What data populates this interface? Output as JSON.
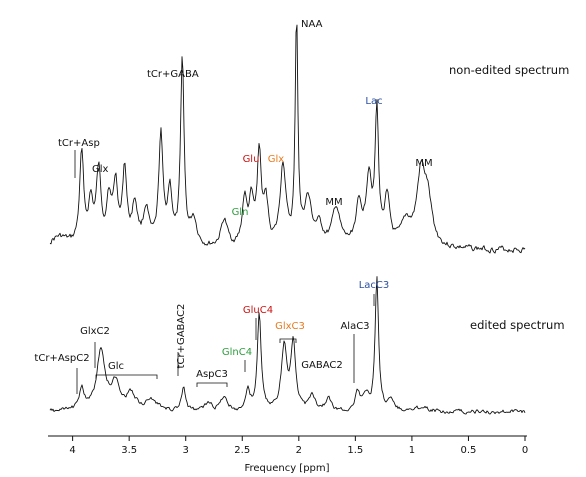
{
  "chart_data": {
    "type": "line",
    "xlabel": "Frequency [ppm]",
    "xlim": [
      4.2,
      0.0
    ],
    "x_reversed": true,
    "xticks": [
      "4",
      "3.5",
      "3",
      "2.5",
      "2",
      "1.5",
      "1",
      "0.5",
      "0"
    ],
    "xtick_values": [
      4,
      3.5,
      3,
      2.5,
      2,
      1.5,
      1,
      0.5,
      0
    ],
    "colors": {
      "black": "#111111",
      "red": "#cc1111",
      "orange": "#e87a1e",
      "green": "#2e9e3e",
      "blue": "#2a4fa0"
    },
    "series": [
      {
        "name": "non-edited spectrum",
        "peaks": [
          {
            "ppm": 4.12,
            "amp": 0.05,
            "w": 0.1
          },
          {
            "ppm": 3.92,
            "amp": 0.4,
            "w": 0.022
          },
          {
            "ppm": 3.84,
            "amp": 0.18,
            "w": 0.025
          },
          {
            "ppm": 3.77,
            "amp": 0.32,
            "w": 0.025
          },
          {
            "ppm": 3.68,
            "amp": 0.2,
            "w": 0.025
          },
          {
            "ppm": 3.62,
            "amp": 0.26,
            "w": 0.025
          },
          {
            "ppm": 3.54,
            "amp": 0.33,
            "w": 0.022
          },
          {
            "ppm": 3.45,
            "amp": 0.18,
            "w": 0.03
          },
          {
            "ppm": 3.35,
            "amp": 0.16,
            "w": 0.03
          },
          {
            "ppm": 3.22,
            "amp": 0.48,
            "w": 0.022
          },
          {
            "ppm": 3.14,
            "amp": 0.24,
            "w": 0.025
          },
          {
            "ppm": 3.03,
            "amp": 0.83,
            "w": 0.018
          },
          {
            "ppm": 2.93,
            "amp": 0.12,
            "w": 0.035
          },
          {
            "ppm": 2.66,
            "amp": 0.12,
            "w": 0.035
          },
          {
            "ppm": 2.48,
            "amp": 0.2,
            "w": 0.025
          },
          {
            "ppm": 2.42,
            "amp": 0.18,
            "w": 0.025
          },
          {
            "ppm": 2.35,
            "amp": 0.4,
            "w": 0.022
          },
          {
            "ppm": 2.29,
            "amp": 0.18,
            "w": 0.025
          },
          {
            "ppm": 2.14,
            "amp": 0.36,
            "w": 0.03
          },
          {
            "ppm": 2.02,
            "amp": 1.0,
            "w": 0.014
          },
          {
            "ppm": 1.92,
            "amp": 0.2,
            "w": 0.04
          },
          {
            "ppm": 1.82,
            "amp": 0.08,
            "w": 0.04
          },
          {
            "ppm": 1.67,
            "amp": 0.17,
            "w": 0.04
          },
          {
            "ppm": 1.47,
            "amp": 0.17,
            "w": 0.035
          },
          {
            "ppm": 1.38,
            "amp": 0.3,
            "w": 0.03
          },
          {
            "ppm": 1.31,
            "amp": 0.57,
            "w": 0.018
          },
          {
            "ppm": 1.22,
            "amp": 0.2,
            "w": 0.03
          },
          {
            "ppm": 1.05,
            "amp": 0.1,
            "w": 0.05
          },
          {
            "ppm": 0.92,
            "amp": 0.3,
            "w": 0.045
          },
          {
            "ppm": 0.86,
            "amp": 0.18,
            "w": 0.045
          }
        ]
      },
      {
        "name": "edited spectrum",
        "peaks": [
          {
            "ppm": 3.92,
            "amp": 0.18,
            "w": 0.025
          },
          {
            "ppm": 3.75,
            "amp": 0.45,
            "w": 0.045
          },
          {
            "ppm": 3.62,
            "amp": 0.2,
            "w": 0.05
          },
          {
            "ppm": 3.48,
            "amp": 0.12,
            "w": 0.05
          },
          {
            "ppm": 3.3,
            "amp": 0.08,
            "w": 0.06
          },
          {
            "ppm": 3.02,
            "amp": 0.18,
            "w": 0.02
          },
          {
            "ppm": 2.8,
            "amp": 0.06,
            "w": 0.04
          },
          {
            "ppm": 2.66,
            "amp": 0.12,
            "w": 0.03
          },
          {
            "ppm": 2.45,
            "amp": 0.16,
            "w": 0.022
          },
          {
            "ppm": 2.35,
            "amp": 0.74,
            "w": 0.02
          },
          {
            "ppm": 2.13,
            "amp": 0.48,
            "w": 0.03
          },
          {
            "ppm": 2.05,
            "amp": 0.52,
            "w": 0.025
          },
          {
            "ppm": 1.88,
            "amp": 0.12,
            "w": 0.03
          },
          {
            "ppm": 1.74,
            "amp": 0.1,
            "w": 0.03
          },
          {
            "ppm": 1.48,
            "amp": 0.14,
            "w": 0.025
          },
          {
            "ppm": 1.4,
            "amp": 0.12,
            "w": 0.03
          },
          {
            "ppm": 1.31,
            "amp": 1.0,
            "w": 0.018
          },
          {
            "ppm": 1.18,
            "amp": 0.08,
            "w": 0.04
          },
          {
            "ppm": 0.9,
            "amp": 0.04,
            "w": 0.06
          }
        ]
      }
    ],
    "annotations_nonedited": [
      {
        "text": "NAA",
        "color": "#111111"
      },
      {
        "text": "tCr+GABA",
        "color": "#111111"
      },
      {
        "text": "non-edited spectrum",
        "color": "#111111"
      },
      {
        "text": "tCr+Asp",
        "color": "#111111"
      },
      {
        "text": "Glx",
        "color": "#111111"
      },
      {
        "text": "Lac",
        "color": "#2a4fa0"
      },
      {
        "text": "Glu",
        "color": "#cc1111"
      },
      {
        "text": "Glx",
        "color": "#e87a1e"
      },
      {
        "text": "MM",
        "color": "#111111"
      },
      {
        "text": "Gln",
        "color": "#2e9e3e"
      },
      {
        "text": "MM",
        "color": "#111111"
      }
    ],
    "annotations_edited": [
      {
        "text": "LacC3",
        "color": "#2a4fa0"
      },
      {
        "text": "GluC4",
        "color": "#cc1111"
      },
      {
        "text": "edited spectrum",
        "color": "#111111"
      },
      {
        "text": "GlxC2",
        "color": "#111111"
      },
      {
        "text": "tCr+GABAC2",
        "color": "#111111"
      },
      {
        "text": "GlxC3",
        "color": "#e87a1e"
      },
      {
        "text": "AlaC3",
        "color": "#111111"
      },
      {
        "text": "tCr+AspC2",
        "color": "#111111"
      },
      {
        "text": "GlnC4",
        "color": "#2e9e3e"
      },
      {
        "text": "Glc",
        "color": "#111111"
      },
      {
        "text": "AspC3",
        "color": "#111111"
      },
      {
        "text": "GABAC2",
        "color": "#111111"
      }
    ]
  }
}
